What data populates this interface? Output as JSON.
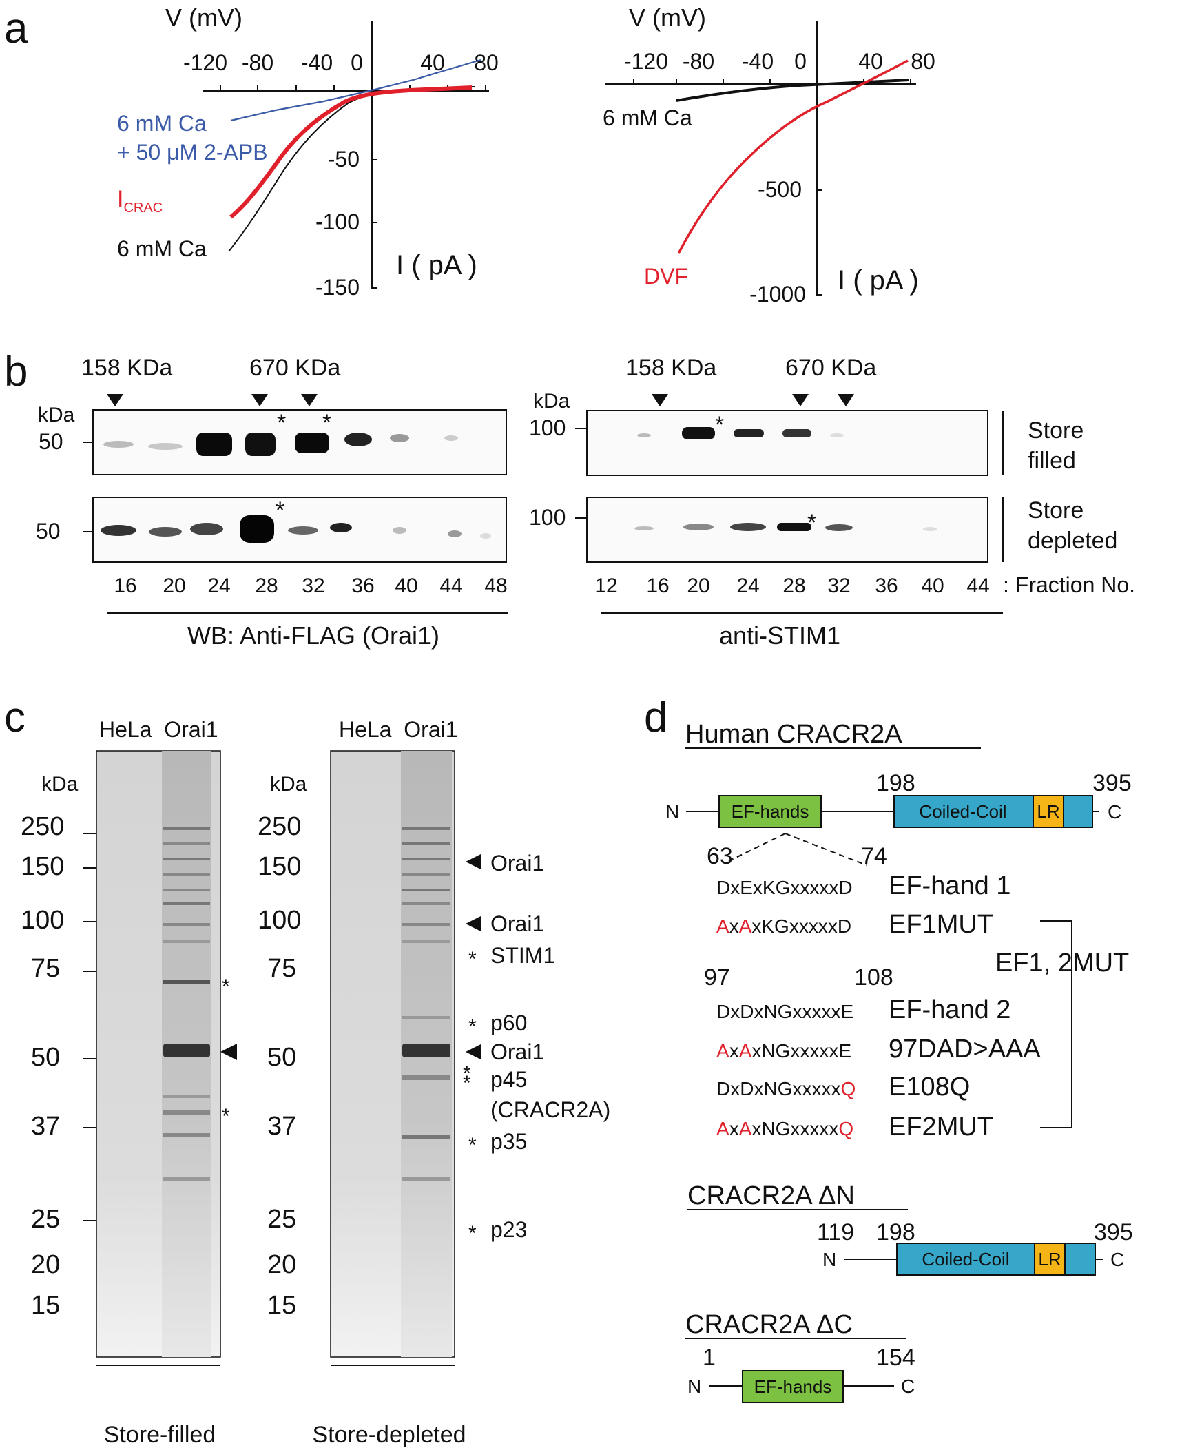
{
  "panels": [
    "a",
    "b",
    "c",
    "d"
  ],
  "a": {
    "left": {
      "xlabel": "V (mV)",
      "ylabel": "I ( pA )",
      "xticks": [
        "-120",
        "-80",
        "-40",
        "0",
        "40",
        "80"
      ],
      "yticks": [
        "-50",
        "-100",
        "-150"
      ],
      "traces": [
        {
          "label": "6 mM Ca\n+ 50 μM 2-APB",
          "label1": "6 mM Ca",
          "label2": "+ 50 μM 2-APB",
          "color": "#3b5aa8"
        },
        {
          "label": "ICRAC",
          "main": "I",
          "sub": "CRAC",
          "color": "#e0202a"
        },
        {
          "label": "6 mM Ca",
          "color": "#111111"
        }
      ]
    },
    "right": {
      "xlabel": "V (mV)",
      "ylabel": "I ( pA )",
      "xticks": [
        "-120",
        "-80",
        "-40",
        "0",
        "40",
        "80"
      ],
      "yticks": [
        "-500",
        "-1000"
      ],
      "traces": [
        {
          "label": "6 mM Ca",
          "color": "#111111"
        },
        {
          "label": "DVF",
          "color": "#e0202a"
        }
      ]
    }
  },
  "b": {
    "left": {
      "markers": [
        "158 KDa",
        "670 KDa"
      ],
      "unit": "kDa",
      "mw": [
        "50",
        "50"
      ],
      "fractions": [
        "16",
        "20",
        "24",
        "28",
        "32",
        "36",
        "40",
        "44",
        "48"
      ],
      "caption": "WB: Anti-FLAG (Orai1)"
    },
    "right": {
      "markers": [
        "158 KDa",
        "670 KDa"
      ],
      "unit": "kDa",
      "mw": [
        "100",
        "100"
      ],
      "fractions": [
        "12",
        "16",
        "20",
        "24",
        "28",
        "32",
        "36",
        "40",
        "44"
      ],
      "caption": "anti-STIM1",
      "fraction_label": ": Fraction No."
    },
    "conditions": [
      {
        "line1": "Store",
        "line2": "filled"
      },
      {
        "line1": "Store",
        "line2": "depleted"
      }
    ]
  },
  "c": {
    "lanes": "HeLa  Orai1",
    "unit": "kDa",
    "mw": [
      "250",
      "150",
      "100",
      "75",
      "50",
      "37",
      "25",
      "20",
      "15"
    ],
    "left_caption": "Store-filled",
    "right_caption": "Store-depleted",
    "annotations": [
      {
        "sym": "◀",
        "text": "Orai1"
      },
      {
        "sym": "◀",
        "text": "Orai1"
      },
      {
        "sym": "*",
        "text": "STIM1"
      },
      {
        "sym": "*",
        "text": "p60"
      },
      {
        "sym": "◀",
        "text": "Orai1"
      },
      {
        "sym": "*\n*",
        "text": "p45"
      },
      {
        "sym": "",
        "text": "(CRACR2A)"
      },
      {
        "sym": "*",
        "text": "p35"
      },
      {
        "sym": "*",
        "text": "p23"
      }
    ]
  },
  "d": {
    "title1": "Human CRACR2A",
    "pos_198": "198",
    "pos_395": "395",
    "n": "N",
    "c": "C",
    "ef_label": "EF-hands",
    "cc_label": "Coiled-Coil",
    "lr_label": "LR",
    "pos_63": "63",
    "pos_74": "74",
    "pos_97": "97",
    "pos_108": "108",
    "sequences": [
      {
        "parts": [
          {
            "t": "DxExKGxxxxxD",
            "c": "#111"
          }
        ],
        "name": "EF-hand 1"
      },
      {
        "parts": [
          {
            "t": "A",
            "c": "#e0202a"
          },
          {
            "t": "x",
            "c": "#111"
          },
          {
            "t": "A",
            "c": "#e0202a"
          },
          {
            "t": "xKGxxxxxD",
            "c": "#111"
          }
        ],
        "name": "EF1MUT"
      },
      {
        "parts": [
          {
            "t": "DxDxNGxxxxxE",
            "c": "#111"
          }
        ],
        "name": "EF-hand 2"
      },
      {
        "parts": [
          {
            "t": "A",
            "c": "#e0202a"
          },
          {
            "t": "x",
            "c": "#111"
          },
          {
            "t": "A",
            "c": "#e0202a"
          },
          {
            "t": "xNGxxxxxE",
            "c": "#111"
          }
        ],
        "name": "97DAD>AAA"
      },
      {
        "parts": [
          {
            "t": "DxDxNGxxxxx",
            "c": "#111"
          },
          {
            "t": "Q",
            "c": "#e0202a"
          }
        ],
        "name": "E108Q"
      },
      {
        "parts": [
          {
            "t": "A",
            "c": "#e0202a"
          },
          {
            "t": "x",
            "c": "#111"
          },
          {
            "t": "A",
            "c": "#e0202a"
          },
          {
            "t": "xNGxxxxx",
            "c": "#111"
          },
          {
            "t": "Q",
            "c": "#e0202a"
          }
        ],
        "name": "EF2MUT"
      }
    ],
    "bracket_label": "EF1, 2MUT",
    "title2": "CRACR2A ΔN",
    "pos_119": "119",
    "pos_198b": "198",
    "pos_395b": "395",
    "title3": "CRACR2A ΔC",
    "pos_1": "1",
    "pos_154": "154",
    "colors": {
      "ef": "#7dc142",
      "cc": "#36a7c9",
      "lr": "#f5b516",
      "mut": "#e0202a"
    }
  },
  "colors": {
    "blue": "#3b5aa8",
    "red": "#e0202a",
    "black": "#111111"
  }
}
